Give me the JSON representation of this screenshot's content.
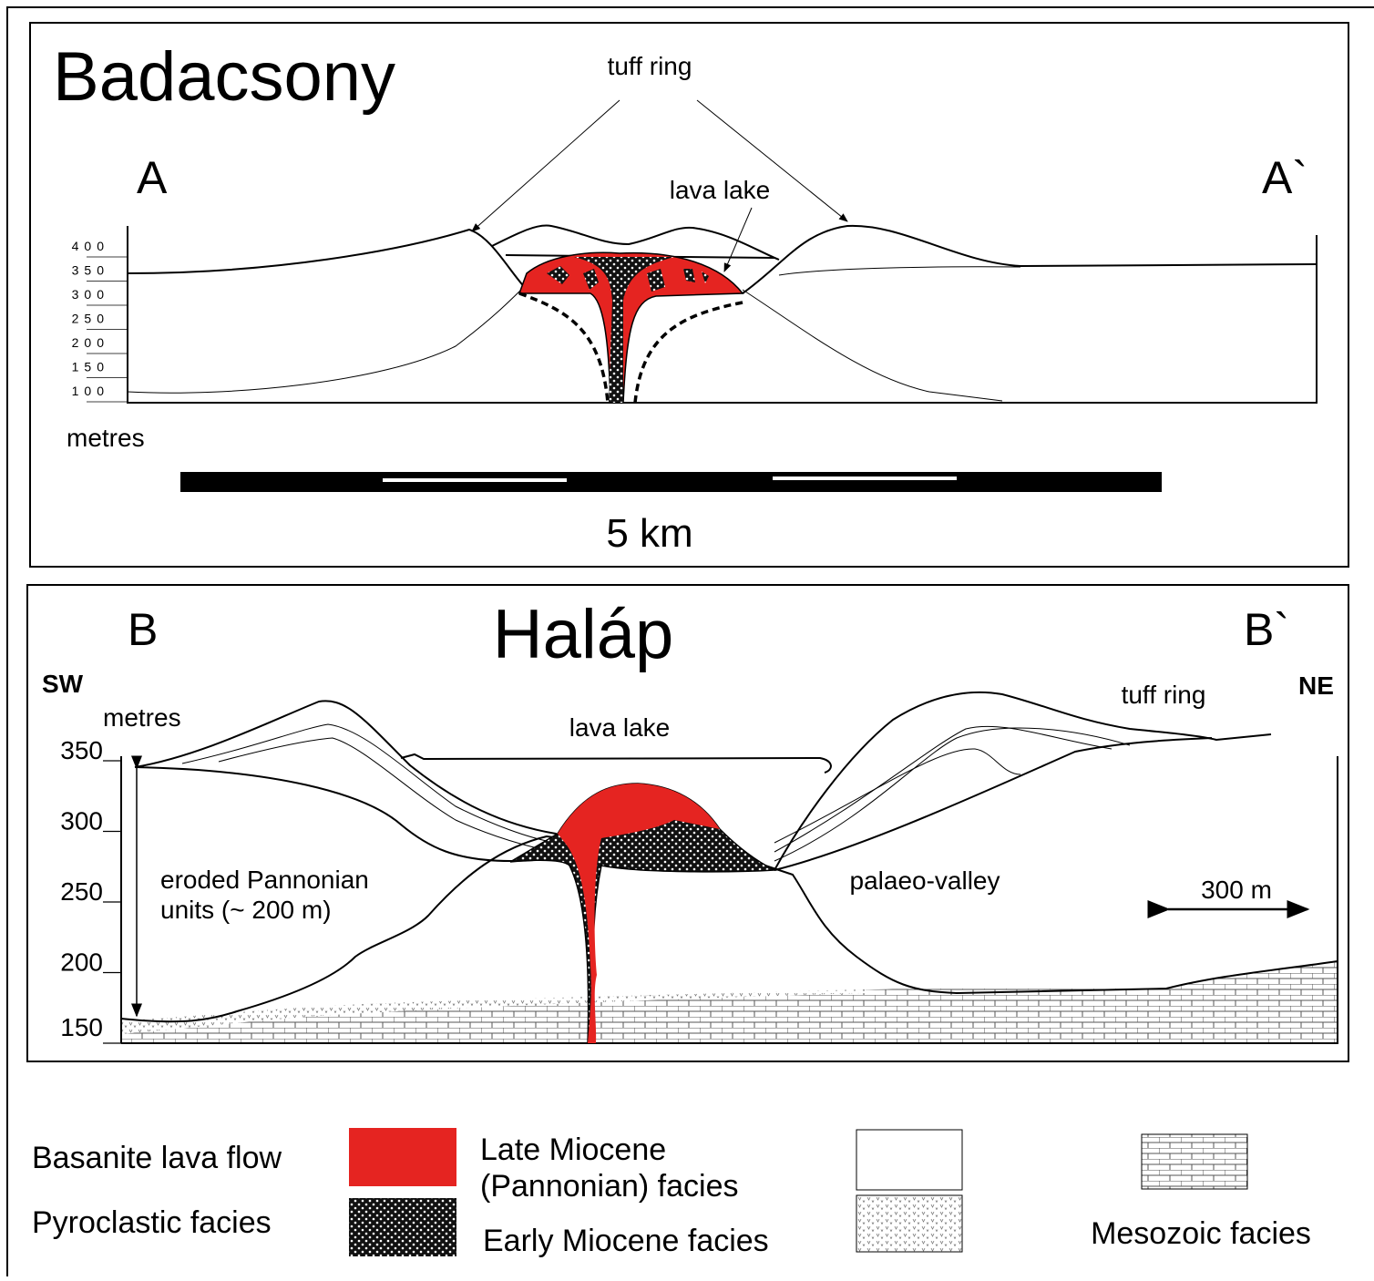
{
  "panel_a": {
    "title": "Badacsony",
    "left_label": "A",
    "right_label": "A`",
    "tuff_ring": "tuff ring",
    "lava_lake": "lava lake",
    "y_unit": "metres",
    "y_ticks": [
      "400",
      "350",
      "300",
      "250",
      "200",
      "150",
      "100"
    ],
    "scale_bar": "5 km"
  },
  "panel_b": {
    "title": "Haláp",
    "left_label": "B",
    "right_label": "B`",
    "left_direction": "SW",
    "right_direction": "NE",
    "y_unit": "metres",
    "y_ticks": [
      "350",
      "300",
      "250",
      "200",
      "150"
    ],
    "lava_lake": "lava lake",
    "tuff_ring": "tuff ring",
    "eroded": [
      "eroded Pannonian",
      "units (~ 200 m)"
    ],
    "palaeo_valley": "palaeo-valley",
    "scale": "300 m"
  },
  "legend": {
    "basanite": "Basanite lava flow",
    "pyroclastic": "Pyroclastic facies",
    "late_miocene": [
      "Late Miocene",
      "(Pannonian) facies"
    ],
    "early_miocene": "Early Miocene facies",
    "mesozoic": "Mesozoic facies"
  }
}
